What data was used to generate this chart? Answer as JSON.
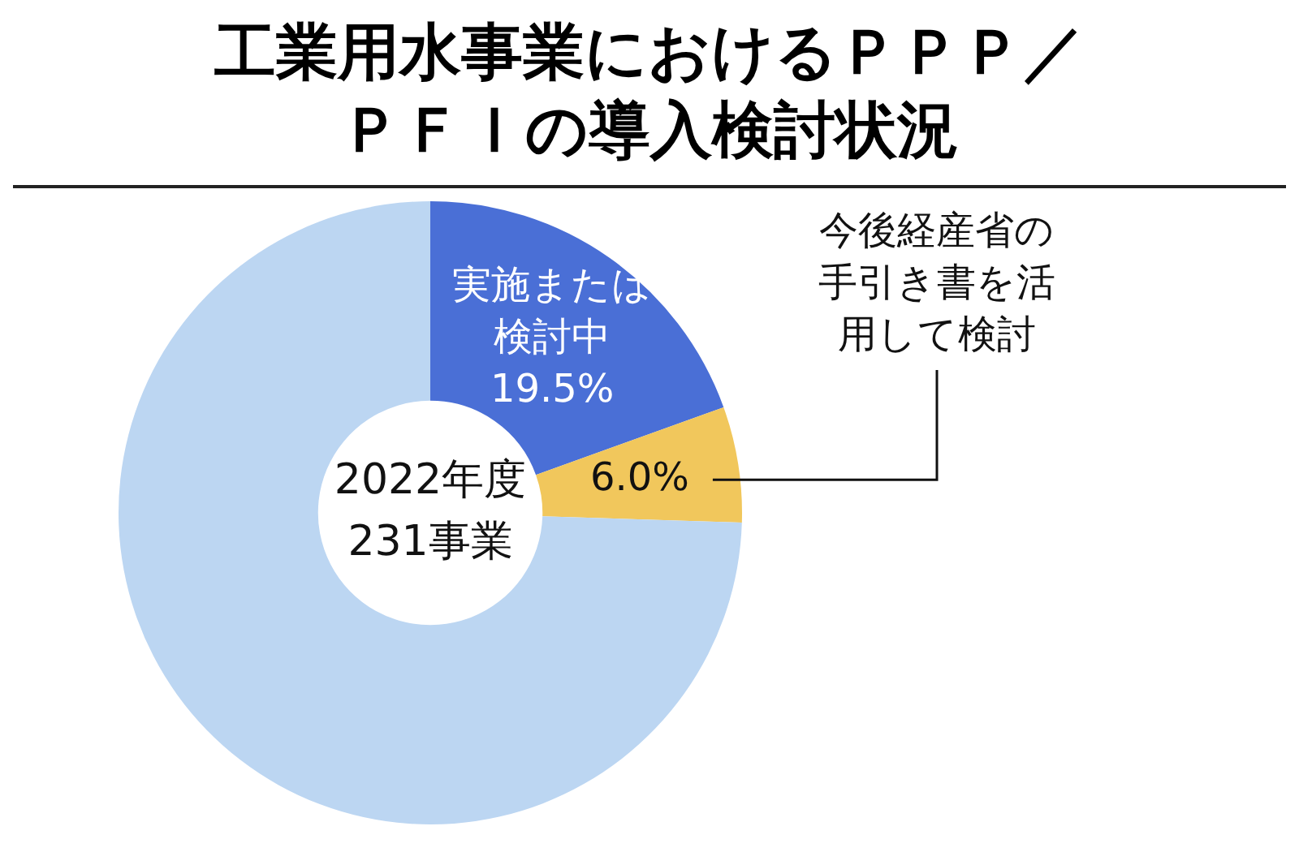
{
  "chart_data": {
    "type": "donut",
    "title": "工業用水事業におけるＰＰＰ／ＰＦＩの導入検討状況",
    "categories": [
      "実施または検討中",
      "今後経産省の手引き書を活用して検討",
      null
    ],
    "values": [
      19.5,
      6.0,
      74.5
    ],
    "colors": [
      "#4a6fd6",
      "#f1c75c",
      "#bcd6f2"
    ],
    "value_labels": [
      "19.5%",
      "6.0%",
      null
    ],
    "annotations": [
      "2022年度",
      "231事業"
    ],
    "legend": false
  }
}
